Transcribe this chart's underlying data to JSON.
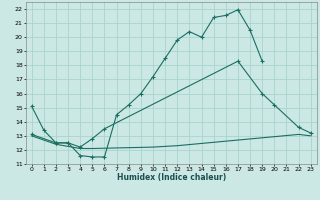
{
  "xlabel": "Humidex (Indice chaleur)",
  "xlim": [
    -0.5,
    23.5
  ],
  "ylim": [
    11,
    22.5
  ],
  "xticks": [
    0,
    1,
    2,
    3,
    4,
    5,
    6,
    7,
    8,
    9,
    10,
    11,
    12,
    13,
    14,
    15,
    16,
    17,
    18,
    19,
    20,
    21,
    22,
    23
  ],
  "yticks": [
    11,
    12,
    13,
    14,
    15,
    16,
    17,
    18,
    19,
    20,
    21,
    22
  ],
  "bg_color": "#cce8e4",
  "grid_color": "#aad4ce",
  "line_color": "#1a6e62",
  "line1_x": [
    0,
    1,
    2,
    3,
    4,
    5,
    6,
    7,
    8,
    9,
    10,
    11,
    12,
    13,
    14,
    15,
    16,
    17,
    18,
    19
  ],
  "line1_y": [
    15.1,
    13.4,
    12.5,
    12.5,
    11.6,
    11.5,
    11.5,
    14.5,
    15.2,
    16.0,
    17.2,
    18.5,
    19.8,
    20.4,
    20.0,
    21.4,
    21.55,
    21.95,
    20.5,
    18.3
  ],
  "line2_x": [
    0,
    2,
    3,
    4,
    5,
    6,
    17,
    19,
    20,
    22,
    23
  ],
  "line2_y": [
    13.1,
    12.5,
    12.5,
    12.2,
    12.8,
    13.5,
    18.3,
    16.0,
    15.2,
    13.6,
    13.2
  ],
  "line3_x": [
    0,
    2,
    4,
    5,
    10,
    12,
    22,
    23
  ],
  "line3_y": [
    13.0,
    12.4,
    12.1,
    12.1,
    12.2,
    12.3,
    13.1,
    13.0
  ]
}
